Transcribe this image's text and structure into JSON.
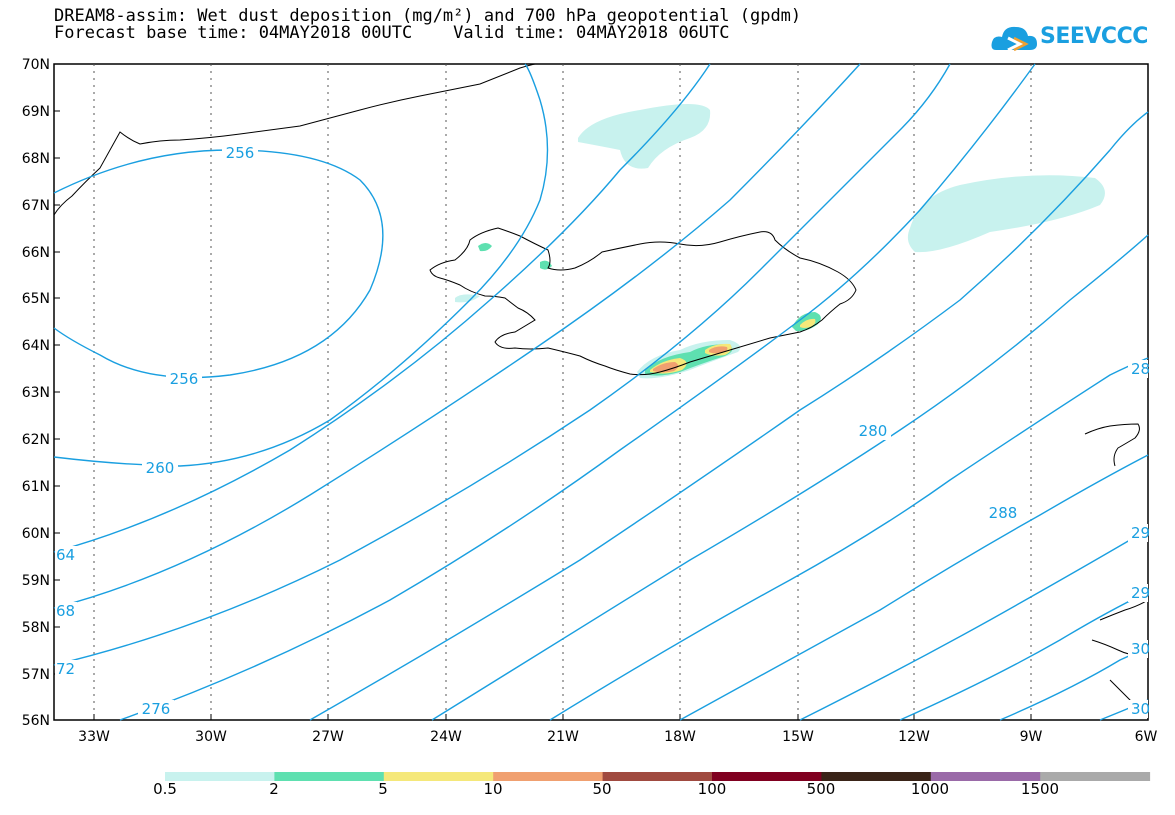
{
  "title": {
    "line1": "DREAM8-assim: Wet dust deposition (mg/m²) and 700 hPa geopotential (gpdm)",
    "line2": "Forecast base time: 04MAY2018 00UTC    Valid time: 04MAY2018 06UTC"
  },
  "logo": {
    "text": "SEEVCCC",
    "icon": "cloud-icon",
    "color": "#1a9fe0"
  },
  "map": {
    "lat_labels": [
      "70N",
      "69N",
      "68N",
      "67N",
      "66N",
      "65N",
      "64N",
      "63N",
      "62N",
      "61N",
      "60N",
      "59N",
      "58N",
      "57N",
      "56N"
    ],
    "lon_labels": [
      "33W",
      "30W",
      "27W",
      "24W",
      "21W",
      "18W",
      "15W",
      "12W",
      "9W",
      "6W"
    ],
    "contour_color": "#1a9fe0",
    "contour_labels": [
      "256",
      "256",
      "260",
      "64",
      "68",
      "72",
      "276",
      "280",
      "288",
      "28",
      "29",
      "29",
      "30",
      "30"
    ]
  },
  "colorbar": {
    "colors": [
      "#c8f2ee",
      "#5ee0b0",
      "#f5e87a",
      "#f0a070",
      "#a04a40",
      "#800020",
      "#3a2418",
      "#9a6aa8",
      "#aaaaaa"
    ],
    "labels": [
      "0.5",
      "2",
      "5",
      "10",
      "50",
      "100",
      "500",
      "1000",
      "1500"
    ]
  }
}
